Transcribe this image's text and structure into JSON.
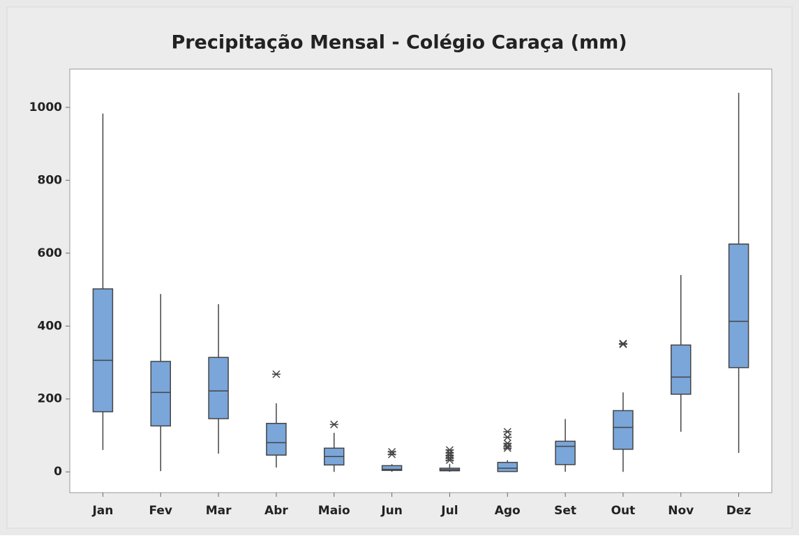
{
  "chart_data": {
    "type": "box",
    "title": "Precipitação Mensal - Colégio Caraça (mm)",
    "categories": [
      "Jan",
      "Fev",
      "Mar",
      "Abr",
      "Maio",
      "Jun",
      "Jul",
      "Ago",
      "Set",
      "Out",
      "Nov",
      "Dez"
    ],
    "whisker_low": [
      60,
      2,
      50,
      12,
      0,
      0,
      0,
      0,
      0,
      0,
      110,
      52
    ],
    "q1": [
      165,
      126,
      146,
      46,
      19,
      4,
      3,
      1,
      20,
      62,
      213,
      286
    ],
    "median": [
      306,
      218,
      222,
      80,
      42,
      7,
      6,
      10,
      70,
      122,
      260,
      413
    ],
    "q3": [
      502,
      303,
      314,
      133,
      65,
      17,
      10,
      26,
      84,
      168,
      348,
      625
    ],
    "whisker_high": [
      983,
      488,
      460,
      188,
      107,
      21,
      22,
      32,
      145,
      218,
      540,
      1040
    ],
    "outliers": [
      [],
      [],
      [],
      [
        268
      ],
      [
        130
      ],
      [
        55,
        48
      ],
      [
        60,
        52,
        45,
        38,
        32
      ],
      [
        110,
        95,
        78,
        70,
        65
      ],
      [],
      [
        352,
        350
      ],
      [],
      []
    ],
    "color": "#7aa6da",
    "ylim": [
      -57,
      1105
    ],
    "yticks": [
      0,
      200,
      400,
      600,
      800,
      1000
    ]
  }
}
